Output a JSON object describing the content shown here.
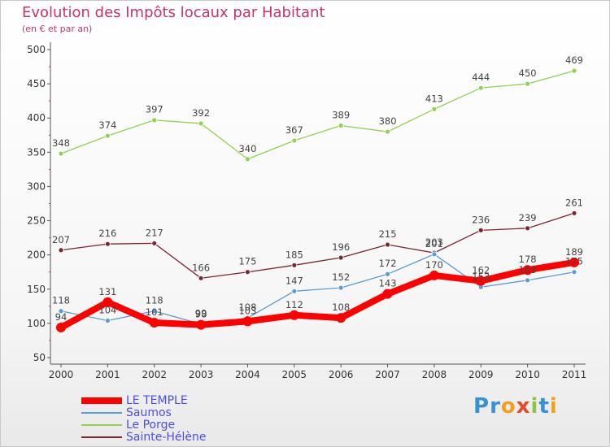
{
  "header": {
    "title": "Evolution des Impôts locaux par Habitant",
    "subtitle": "(en € et par an)"
  },
  "logo": {
    "letters": [
      "P",
      "r",
      "o",
      "x",
      "i",
      "t",
      "i"
    ],
    "colors": [
      "#3a8fd9",
      "#3a8fd9",
      "#f0a01e",
      "#e24a2a",
      "#8cc63e",
      "#3a8fd9",
      "#f0a01e"
    ]
  },
  "chart_data": {
    "type": "line",
    "categories": [
      "2000",
      "2001",
      "2002",
      "2003",
      "2004",
      "2005",
      "2006",
      "2007",
      "2008",
      "2009",
      "2010",
      "2011"
    ],
    "ylim": [
      50,
      500
    ],
    "yticks": [
      50,
      100,
      150,
      200,
      250,
      300,
      350,
      400,
      450,
      500
    ],
    "grid": false,
    "legend_position": "bottom-left",
    "series": [
      {
        "name": "LE TEMPLE",
        "color": "#ff0000",
        "values": [
          94,
          131,
          101,
          98,
          103,
          112,
          108,
          143,
          170,
          162,
          178,
          189
        ],
        "labels": [
          "94",
          "131",
          "101",
          "98",
          "103",
          "112",
          "108",
          "143",
          "170",
          "162",
          "178",
          "189"
        ]
      },
      {
        "name": "Saumos",
        "color": "#5b9bd5",
        "values": [
          118,
          104,
          118,
          99,
          108,
          147,
          152,
          172,
          201,
          153,
          163,
          175
        ],
        "labels": [
          "118",
          "104",
          "118",
          "99",
          "108",
          "147",
          "152",
          "172",
          "201",
          "153",
          "163",
          "175"
        ]
      },
      {
        "name": "Le Porge",
        "color": "#92d050",
        "values": [
          348,
          374,
          397,
          392,
          340,
          367,
          389,
          380,
          413,
          444,
          450,
          469
        ],
        "labels": [
          "348",
          "374",
          "397",
          "392",
          "340",
          "367",
          "389",
          "380",
          "413",
          "444",
          "450",
          "469"
        ]
      },
      {
        "name": "Sainte-Hélène",
        "color": "#7b2530",
        "values": [
          207,
          216,
          217,
          166,
          175,
          185,
          196,
          215,
          203,
          236,
          239,
          261
        ],
        "labels": [
          "207",
          "216",
          "217",
          "166",
          "175",
          "185",
          "196",
          "215",
          "203",
          "236",
          "239",
          "261"
        ]
      }
    ]
  }
}
